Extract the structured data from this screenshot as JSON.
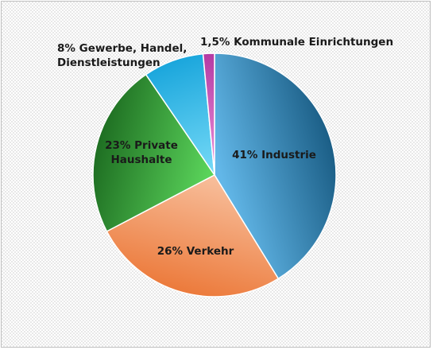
{
  "chart_data": {
    "type": "pie",
    "title": "",
    "slices": [
      {
        "label": "Industrie",
        "value": 41,
        "label_lines": [
          "41% Industrie"
        ],
        "color_light": "#62b7e8",
        "color_dark": "#1b5e86"
      },
      {
        "label": "Verkehr",
        "value": 26,
        "label_lines": [
          "26% Verkehr"
        ],
        "color_light": "#f7bc98",
        "color_dark": "#ec7a3b"
      },
      {
        "label": "Private Haushalte",
        "value": 23,
        "label_lines": [
          "23% Private",
          "Haushalte"
        ],
        "color_light": "#5ad35a",
        "color_dark": "#1e6e22"
      },
      {
        "label": "Gewerbe, Handel, Dienstleistungen",
        "value": 8,
        "label_lines": [
          "8% Gewerbe, Handel,",
          "Dienstleistungen"
        ],
        "color_light": "#72d8f6",
        "color_dark": "#1aa6dc"
      },
      {
        "label": "Kommunale Einrichtungen",
        "value": 1.5,
        "label_lines": [
          "1,5% Kommunale Einrichtungen"
        ],
        "color_light": "#e98fd8",
        "color_dark": "#b43aa3"
      }
    ],
    "legend": "none"
  }
}
